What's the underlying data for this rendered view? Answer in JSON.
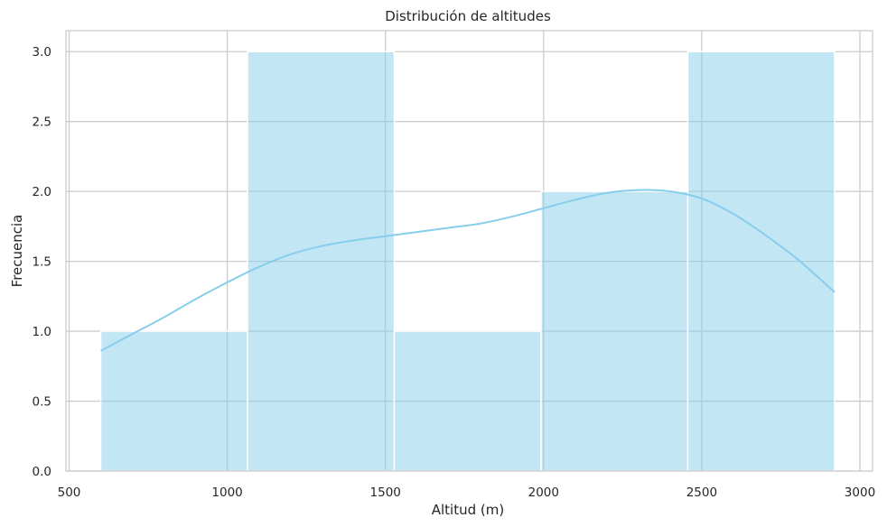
{
  "chart_data": {
    "type": "bar",
    "title": "Distribución de altitudes",
    "xlabel": "Altitud (m)",
    "ylabel": "Frecuencia",
    "xlim": [
      490,
      3040
    ],
    "ylim": [
      0,
      3.15
    ],
    "xticks": [
      500,
      1000,
      1500,
      2000,
      2500,
      3000
    ],
    "yticks": [
      0,
      0.5,
      1.0,
      1.5,
      2.0,
      2.5,
      3.0
    ],
    "xtick_labels": [
      "500",
      "1000",
      "1500",
      "2000",
      "2500",
      "3000"
    ],
    "ytick_labels": [
      "0.0",
      "0.5",
      "1.0",
      "1.5",
      "2.0",
      "2.5",
      "3.0"
    ],
    "grid": true,
    "bins": [
      {
        "x0": 600,
        "x1": 1064,
        "count": 1
      },
      {
        "x0": 1064,
        "x1": 1528,
        "count": 3
      },
      {
        "x0": 1528,
        "x1": 1992,
        "count": 1
      },
      {
        "x0": 1992,
        "x1": 2456,
        "count": 2
      },
      {
        "x0": 2456,
        "x1": 2920,
        "count": 3
      }
    ],
    "kde": {
      "x": [
        600,
        700,
        800,
        900,
        1000,
        1100,
        1200,
        1300,
        1400,
        1500,
        1600,
        1700,
        1800,
        1900,
        2000,
        2100,
        2200,
        2300,
        2400,
        2500,
        2600,
        2700,
        2800,
        2920
      ],
      "y": [
        0.86,
        0.98,
        1.1,
        1.23,
        1.35,
        1.46,
        1.55,
        1.61,
        1.65,
        1.68,
        1.71,
        1.74,
        1.77,
        1.82,
        1.88,
        1.94,
        1.99,
        2.01,
        2.0,
        1.95,
        1.84,
        1.69,
        1.52,
        1.28
      ]
    },
    "colors": {
      "bar": "#87ceeb",
      "line": "#87ceeb",
      "grid": "#cccccc"
    }
  }
}
